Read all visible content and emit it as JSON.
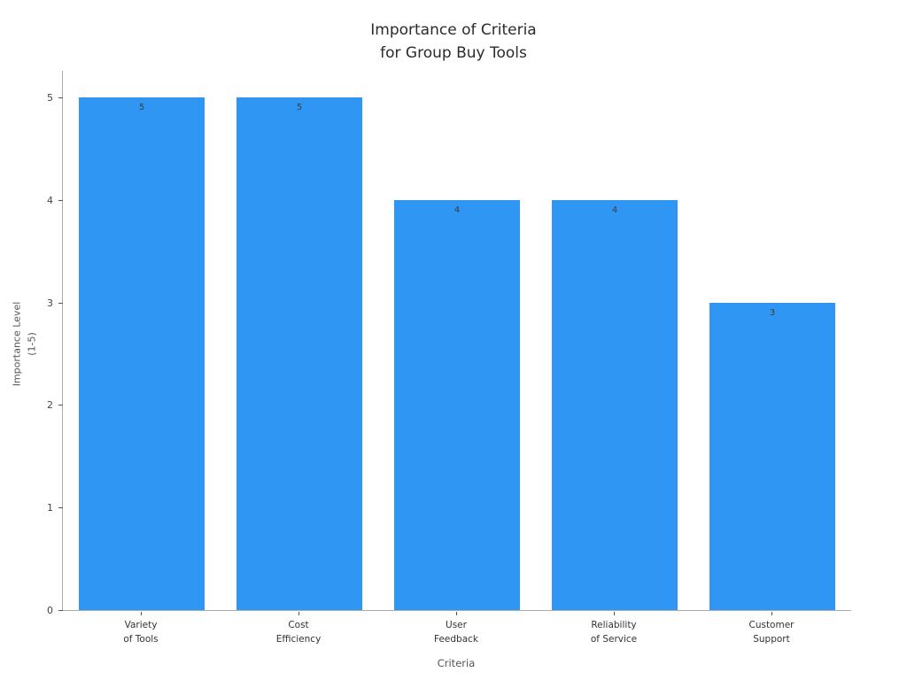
{
  "chart_data": {
    "type": "bar",
    "title_lines": [
      "Importance of Criteria",
      "for Group Buy Tools"
    ],
    "ylabel_lines": [
      "Importance Level",
      "(1-5)"
    ],
    "xlabel": "Criteria",
    "categories": [
      [
        "Variety",
        "of Tools"
      ],
      [
        "Cost",
        "Efficiency"
      ],
      [
        "User",
        "Feedback"
      ],
      [
        "Reliability",
        "of Service"
      ],
      [
        "Customer",
        "Support"
      ]
    ],
    "values": [
      5,
      5,
      4,
      4,
      3
    ],
    "ylim": [
      0,
      5
    ],
    "yticks": [
      0,
      1,
      2,
      3,
      4,
      5
    ],
    "bar_color": "#2f96f4",
    "value_label_color": "#3d3d3d",
    "grid": "off",
    "legend": "none"
  }
}
